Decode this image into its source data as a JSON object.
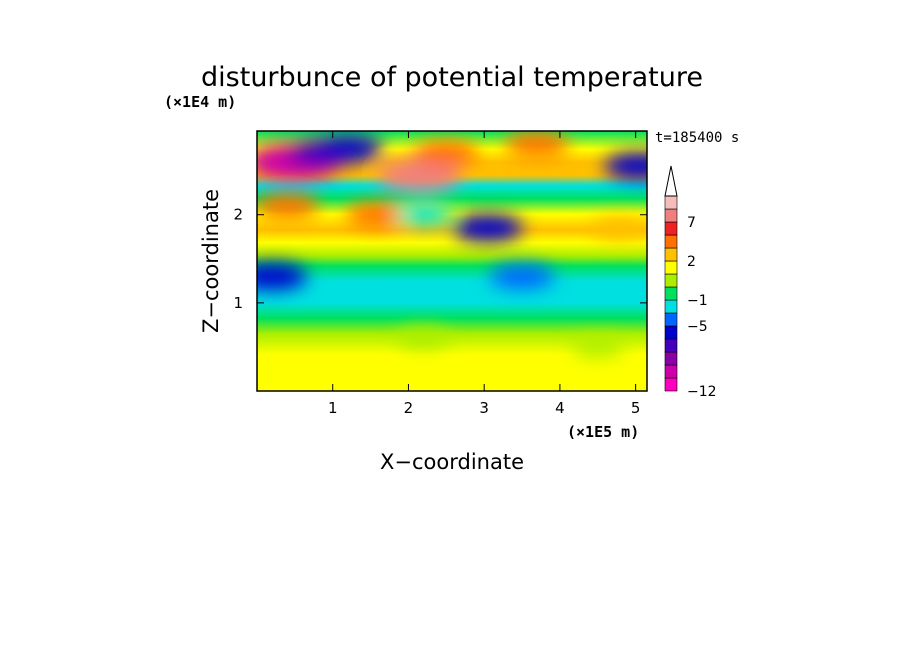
{
  "chart_data": {
    "type": "heatmap",
    "title": "disturbunce of potential temperature",
    "time_label": "t=185400 s",
    "xlabel": "X−coordinate",
    "ylabel": "Z−coordinate",
    "x_unit": "(×1E5 m)",
    "y_unit": "(×1E4 m)",
    "xlim": [
      0,
      5.15
    ],
    "ylim": [
      0,
      2.95
    ],
    "x_ticks": [
      "1",
      "2",
      "3",
      "4",
      "5"
    ],
    "y_ticks": [
      "1",
      "2"
    ],
    "colorbar": {
      "tick_labels": [
        "7",
        "2",
        "−1",
        "−5",
        "−12"
      ],
      "tick_levels": [
        7,
        2,
        -1,
        -5,
        -12
      ],
      "colors": [
        "#ff00c0",
        "#cc00aa",
        "#8800aa",
        "#4400bb",
        "#0000cc",
        "#0066ff",
        "#00e0e0",
        "#00e060",
        "#aaee00",
        "#ffff00",
        "#ffc000",
        "#ff7000",
        "#ee2222",
        "#f07f7f",
        "#f5bcbc"
      ],
      "extends_max": true
    },
    "features": [
      {
        "x": 0.5,
        "z": 2.6,
        "value": -10
      },
      {
        "x": 0.9,
        "z": 2.7,
        "value": -6
      },
      {
        "x": 1.2,
        "z": 2.75,
        "value": -5
      },
      {
        "x": 2.15,
        "z": 2.45,
        "value": 8
      },
      {
        "x": 2.5,
        "z": 2.7,
        "value": 4
      },
      {
        "x": 3.7,
        "z": 2.8,
        "value": 4
      },
      {
        "x": 5.05,
        "z": 2.55,
        "value": -5
      },
      {
        "x": 0.4,
        "z": 2.1,
        "value": 4
      },
      {
        "x": 1.6,
        "z": 2.0,
        "value": 4
      },
      {
        "x": 2.2,
        "z": 2.0,
        "value": -2
      },
      {
        "x": 3.05,
        "z": 1.85,
        "value": -5
      },
      {
        "x": 4.8,
        "z": 1.85,
        "value": 3
      },
      {
        "x": 0.2,
        "z": 1.3,
        "value": -5
      },
      {
        "x": 3.5,
        "z": 1.3,
        "value": -4
      },
      {
        "x": 2.2,
        "z": 0.6,
        "value": 1
      },
      {
        "x": 4.5,
        "z": 0.5,
        "value": 1
      }
    ]
  }
}
